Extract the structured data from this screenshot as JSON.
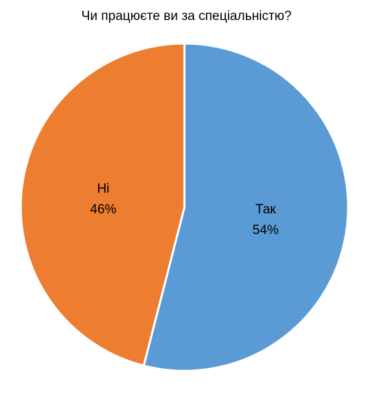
{
  "chart_data": {
    "type": "pie",
    "title": "Чи працюєте ви за спеціальністю?",
    "slices": [
      {
        "label": "Так",
        "value": 54,
        "value_label": "54%",
        "color": "#5B9BD5"
      },
      {
        "label": "Ні",
        "value": 46,
        "value_label": "46%",
        "color": "#ED7D31"
      }
    ],
    "start_angle_deg": 0,
    "direction": "clockwise",
    "legend": "none",
    "data_labels": "inside"
  }
}
